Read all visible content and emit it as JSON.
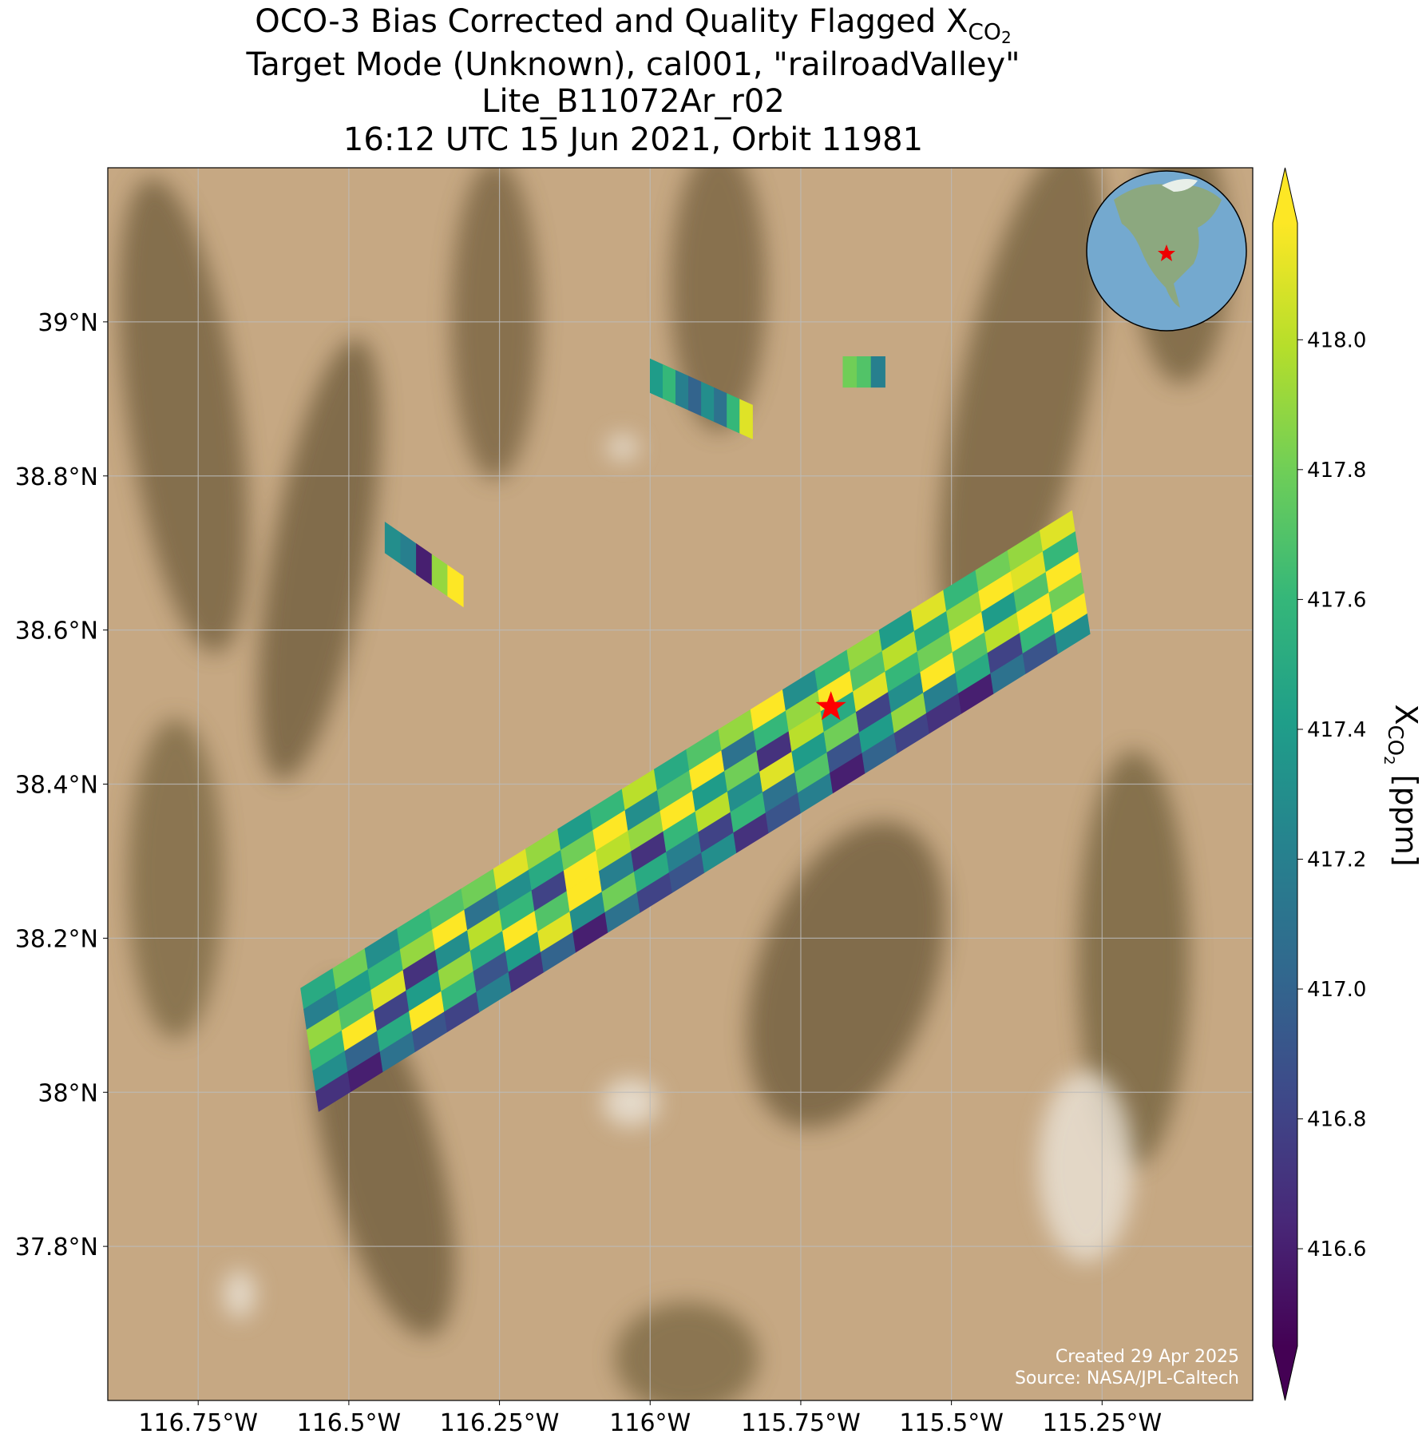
{
  "title": {
    "line1": {
      "text": "OCO-3 Bias Corrected and Quality Flagged X",
      "subscript": "CO",
      "sub_subscript": "2"
    },
    "line2": "Target Mode (Unknown), cal001, \"railroadValley\"",
    "line3": "Lite_B11072Ar_r02",
    "line4": "16:12 UTC 15 Jun 2021, Orbit 11981"
  },
  "map": {
    "lon_range": [
      -116.9,
      -115.0
    ],
    "lat_range": [
      37.6,
      39.2
    ],
    "grid": true,
    "lon_ticks": [
      {
        "value": -116.75,
        "label": "116.75°W"
      },
      {
        "value": -116.5,
        "label": "116.5°W"
      },
      {
        "value": -116.25,
        "label": "116.25°W"
      },
      {
        "value": -116,
        "label": "116°W"
      },
      {
        "value": -115.75,
        "label": "115.75°W"
      },
      {
        "value": -115.5,
        "label": "115.5°W"
      },
      {
        "value": -115.25,
        "label": "115.25°W"
      }
    ],
    "lat_ticks": [
      {
        "value": 37.8,
        "label": "37.8°N"
      },
      {
        "value": 38,
        "label": "38°N"
      },
      {
        "value": 38.2,
        "label": "38.2°N"
      },
      {
        "value": 38.4,
        "label": "38.4°N"
      },
      {
        "value": 38.6,
        "label": "38.6°N"
      },
      {
        "value": 38.8,
        "label": "38.8°N"
      },
      {
        "value": 39,
        "label": "39°N"
      }
    ],
    "site": {
      "lon": -115.7,
      "lat": 38.5,
      "color": "#ff0000"
    }
  },
  "swath": {
    "colormap": "viridis",
    "values": [
      [
        416.7,
        417.3,
        417.6,
        417.9,
        417.2,
        417.5
      ],
      [
        416.6,
        417.0,
        418.2,
        417.7,
        417.4,
        417.8
      ],
      [
        417.1,
        417.5,
        416.8,
        418.1,
        417.6,
        417.3
      ],
      [
        416.9,
        418.2,
        417.4,
        416.7,
        417.9,
        417.6
      ],
      [
        416.8,
        417.6,
        417.9,
        417.3,
        418.2,
        417.7
      ],
      [
        417.2,
        416.9,
        417.5,
        418.0,
        417.1,
        417.8
      ],
      [
        416.7,
        417.4,
        418.2,
        417.6,
        417.3,
        418.1
      ],
      [
        417.0,
        418.1,
        417.7,
        416.8,
        417.5,
        417.9
      ],
      [
        416.6,
        417.3,
        418.2,
        418.2,
        417.8,
        417.4
      ],
      [
        417.1,
        417.8,
        417.2,
        418.0,
        418.2,
        417.6
      ],
      [
        416.8,
        417.5,
        416.7,
        417.9,
        417.3,
        418.0
      ],
      [
        416.9,
        417.2,
        417.6,
        418.2,
        417.7,
        417.5
      ],
      [
        417.3,
        416.8,
        418.0,
        417.4,
        418.2,
        417.7
      ],
      [
        416.7,
        417.6,
        417.3,
        417.8,
        417.1,
        417.9
      ],
      [
        416.9,
        417.1,
        418.1,
        416.7,
        417.6,
        418.2
      ],
      [
        417.2,
        417.7,
        417.4,
        418.0,
        417.9,
        417.3
      ],
      [
        416.6,
        416.9,
        417.8,
        417.5,
        418.2,
        417.6
      ],
      [
        417.0,
        417.4,
        416.8,
        418.1,
        417.7,
        417.9
      ],
      [
        416.8,
        417.9,
        417.3,
        417.6,
        418.0,
        417.4
      ],
      [
        416.7,
        417.2,
        418.2,
        417.8,
        417.5,
        418.1
      ],
      [
        416.6,
        417.5,
        417.7,
        418.2,
        417.9,
        417.6
      ],
      [
        417.1,
        416.8,
        418.0,
        417.4,
        418.2,
        417.8
      ],
      [
        416.9,
        417.6,
        418.2,
        417.7,
        418.1,
        417.9
      ],
      [
        417.3,
        418.2,
        417.8,
        418.2,
        417.6,
        418.1
      ]
    ],
    "fragments": [
      [
        417.4,
        417.6,
        417.2,
        417.0,
        417.3,
        417.1,
        417.6,
        418.1
      ],
      [
        417.8,
        417.7,
        417.2
      ],
      [
        417.3,
        417.2,
        416.6,
        417.9,
        418.2
      ]
    ]
  },
  "colorbar": {
    "range": [
      416.45,
      418.18
    ],
    "label": {
      "text": "X",
      "subscript": "CO",
      "sub_subscript": "2",
      "unit": " [ppm]"
    },
    "ticks": [
      {
        "value": 416.6,
        "label": "416.6"
      },
      {
        "value": 416.8,
        "label": "416.8"
      },
      {
        "value": 417.0,
        "label": "417.0"
      },
      {
        "value": 417.2,
        "label": "417.2"
      },
      {
        "value": 417.4,
        "label": "417.4"
      },
      {
        "value": 417.6,
        "label": "417.6"
      },
      {
        "value": 417.8,
        "label": "417.8"
      },
      {
        "value": 418.0,
        "label": "418.0"
      }
    ]
  },
  "credits": [
    "Created 29 Apr 2025",
    "Source: NASA/JPL-Caltech"
  ]
}
